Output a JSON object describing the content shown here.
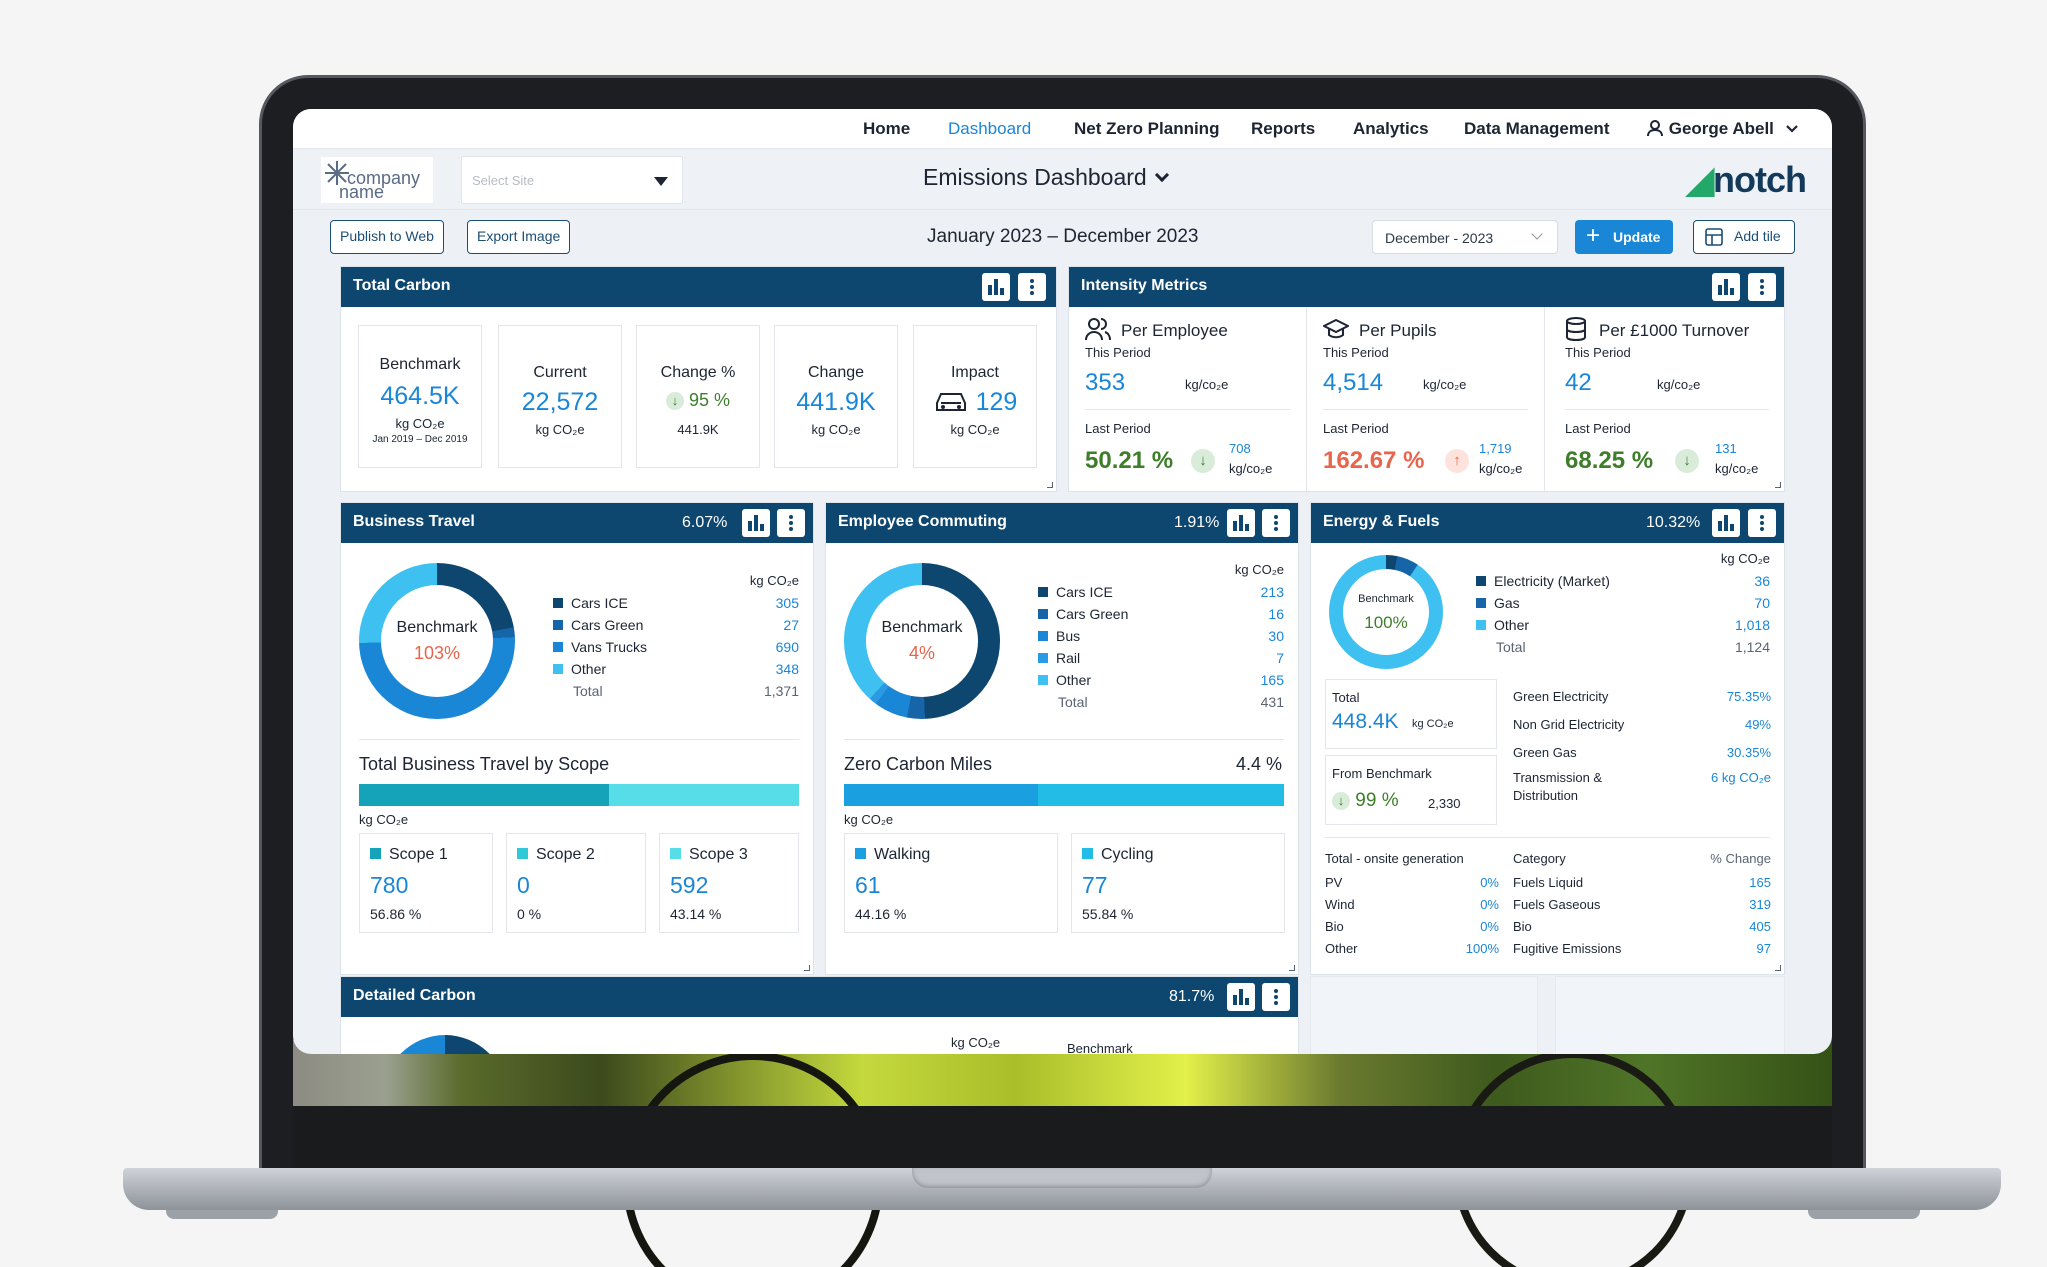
{
  "nav": {
    "home": "Home",
    "dashboard": "Dashboard",
    "netzero": "Net Zero Planning",
    "reports": "Reports",
    "analytics": "Analytics",
    "datamgmt": "Data Management",
    "user": "George Abell"
  },
  "header": {
    "logo_line1": "company",
    "logo_line2": "name",
    "site_placeholder": "Select Site",
    "title": "Emissions Dashboard",
    "brand": "notch"
  },
  "toolbar": {
    "publish": "Publish to Web",
    "export": "Export Image",
    "range": "January 2023 – December 2023",
    "period_select": "December - 2023",
    "update": "Update",
    "addtile": "Add tile"
  },
  "total_carbon": {
    "title": "Total Carbon",
    "benchmark": {
      "label": "Benchmark",
      "value": "464.5K",
      "unit": "kg CO₂e",
      "range": "Jan 2019 – Dec 2019"
    },
    "current": {
      "label": "Current",
      "value": "22,572",
      "unit": "kg CO₂e"
    },
    "change_pct": {
      "label": "Change %",
      "value": "95 %",
      "sub": "441.9K"
    },
    "change": {
      "label": "Change",
      "value": "441.9K",
      "unit": "kg CO₂e"
    },
    "impact": {
      "label": "Impact",
      "value": "129",
      "unit": "kg CO₂e"
    }
  },
  "intensity": {
    "title": "Intensity Metrics",
    "cols": [
      {
        "name": "Per Employee",
        "this_label": "This Period",
        "this_value": "353",
        "unit": "kg/co₂e",
        "last_label": "Last Period",
        "last_pct": "50.21 %",
        "last_value": "708",
        "last_unit": "kg/co₂e"
      },
      {
        "name": "Per Pupils",
        "this_label": "This Period",
        "this_value": "4,514",
        "unit": "kg/co₂e",
        "last_label": "Last Period",
        "last_pct": "162.67 %",
        "last_value": "1,719",
        "last_unit": "kg/co₂e"
      },
      {
        "name": "Per £1000 Turnover",
        "this_label": "This Period",
        "this_value": "42",
        "unit": "kg/co₂e",
        "last_label": "Last Period",
        "last_pct": "68.25 %",
        "last_value": "131",
        "last_unit": "kg/co₂e"
      }
    ]
  },
  "business_travel": {
    "title": "Business Travel",
    "pct": "6.07%",
    "unit": "kg CO₂e",
    "donut": {
      "label": "Benchmark",
      "value": "103%"
    },
    "legend": [
      {
        "name": "Cars ICE",
        "value": "305",
        "color": "#0d466f"
      },
      {
        "name": "Cars Green",
        "value": "27",
        "color": "#1565a8"
      },
      {
        "name": "Vans Trucks",
        "value": "690",
        "color": "#1a86d6"
      },
      {
        "name": "Other",
        "value": "348",
        "color": "#3ec1f0"
      }
    ],
    "total_label": "Total",
    "total": "1,371",
    "scope_title": "Total Business Travel by Scope",
    "scope_unit": "kg CO₂e",
    "scopes": [
      {
        "name": "Scope 1",
        "value": "780",
        "pct": "56.86 %",
        "color": "#14a3b8"
      },
      {
        "name": "Scope 2",
        "value": "0",
        "pct": "0 %",
        "color": "#2fc9d8"
      },
      {
        "name": "Scope 3",
        "value": "592",
        "pct": "43.14 %",
        "color": "#56dde8"
      }
    ]
  },
  "employee_commuting": {
    "title": "Employee Commuting",
    "pct": "1.91%",
    "unit": "kg CO₂e",
    "donut": {
      "label": "Benchmark",
      "value": "4%"
    },
    "legend": [
      {
        "name": "Cars ICE",
        "value": "213",
        "color": "#0d466f"
      },
      {
        "name": "Cars Green",
        "value": "16",
        "color": "#1565a8"
      },
      {
        "name": "Bus",
        "value": "30",
        "color": "#1a86d6"
      },
      {
        "name": "Rail",
        "value": "7",
        "color": "#2a9be3"
      },
      {
        "name": "Other",
        "value": "165",
        "color": "#3ec1f0"
      }
    ],
    "total_label": "Total",
    "total": "431",
    "zcm_title": "Zero Carbon Miles",
    "zcm_pct": "4.4 %",
    "zcm_unit": "kg CO₂e",
    "modes": [
      {
        "name": "Walking",
        "value": "61",
        "pct": "44.16 %",
        "color": "#1a9fe0"
      },
      {
        "name": "Cycling",
        "value": "77",
        "pct": "55.84 %",
        "color": "#22bde6"
      }
    ]
  },
  "energy": {
    "title": "Energy & Fuels",
    "pct": "10.32%",
    "unit": "kg CO₂e",
    "donut": {
      "label": "Benchmark",
      "value": "100%"
    },
    "legend": [
      {
        "name": "Electricity (Market)",
        "value": "36",
        "color": "#0d466f"
      },
      {
        "name": "Gas",
        "value": "70",
        "color": "#1565a8"
      },
      {
        "name": "Other",
        "value": "1,018",
        "color": "#3ec1f0"
      }
    ],
    "total_label": "Total",
    "total": "1,124",
    "total_box": {
      "label": "Total",
      "value": "448.4K",
      "unit": "kg CO₂e"
    },
    "bench_box": {
      "label": "From Benchmark",
      "pct": "99 %",
      "value": "2,330"
    },
    "renew": [
      {
        "name": "Green Electricity",
        "value": "75.35%"
      },
      {
        "name": "Non Grid Electricity",
        "value": "49%"
      },
      {
        "name": "Green Gas",
        "value": "30.35%"
      },
      {
        "name": "Transmission & Distribution",
        "value": "6 kg CO₂e"
      }
    ],
    "onsite_title": "Total - onsite generation",
    "onsite": [
      {
        "name": "PV",
        "value": "0%"
      },
      {
        "name": "Wind",
        "value": "0%"
      },
      {
        "name": "Bio",
        "value": "0%"
      },
      {
        "name": "Other",
        "value": "100%"
      }
    ],
    "cat_title": "Category",
    "cat_change": "% Change",
    "categories": [
      {
        "name": "Fuels Liquid",
        "value": "165"
      },
      {
        "name": "Fuels Gaseous",
        "value": "319"
      },
      {
        "name": "Bio",
        "value": "405"
      },
      {
        "name": "Fugitive Emissions",
        "value": "97"
      }
    ]
  },
  "detailed": {
    "title": "Detailed Carbon",
    "pct": "81.7%",
    "unit": "kg CO₂e",
    "bench": "Benchmark"
  },
  "colors": {
    "navy": "#0d466f",
    "accent": "#1a86d6",
    "good": "#3e7e2a",
    "bad": "#e8644a"
  }
}
